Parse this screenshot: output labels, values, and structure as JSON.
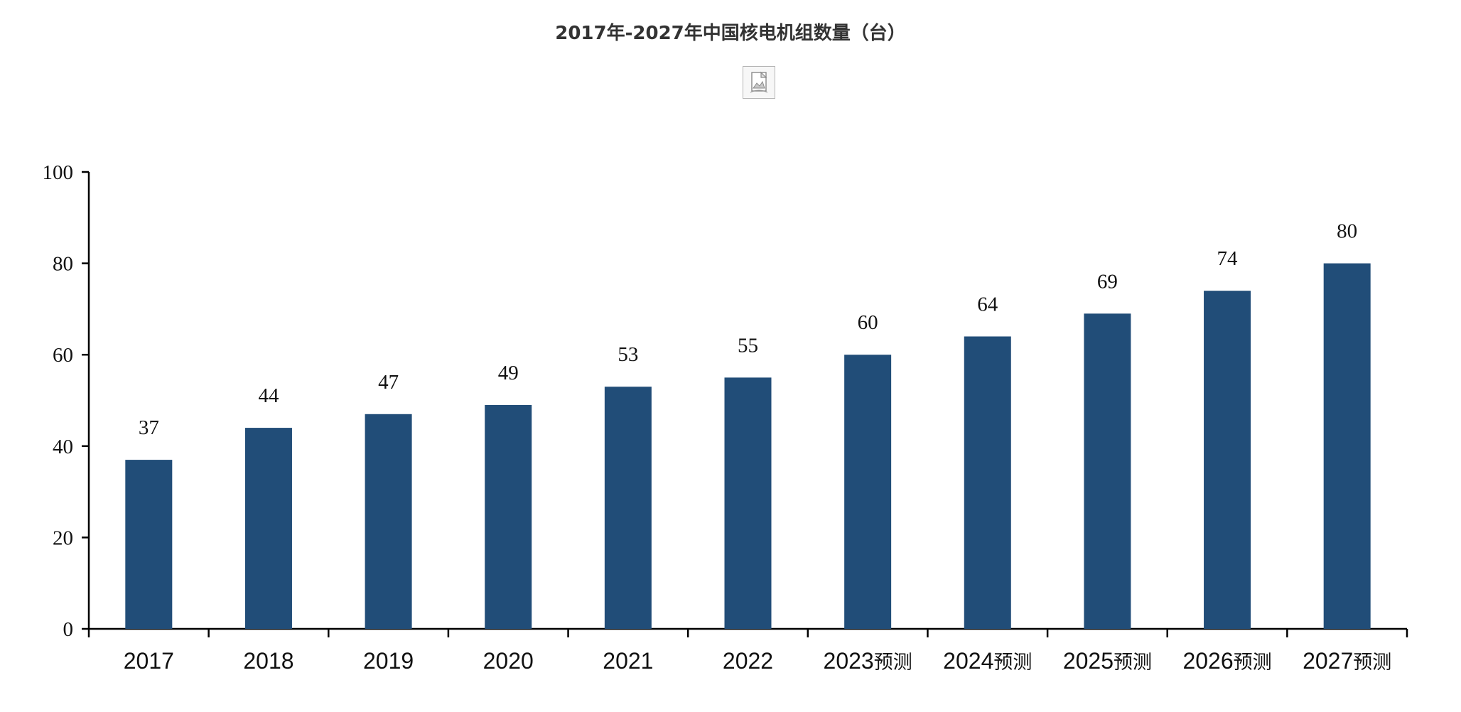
{
  "chart_data": {
    "type": "bar",
    "title": "2017年-2027年中国核电机组数量（台）",
    "categories": [
      "2017",
      "2018",
      "2019",
      "2020",
      "2021",
      "2022",
      "2023预测",
      "2024预测",
      "2025预测",
      "2026预测",
      "2027预测"
    ],
    "values": [
      37,
      44,
      47,
      49,
      53,
      55,
      60,
      64,
      69,
      74,
      80
    ],
    "xlabel": "",
    "ylabel": "",
    "ylim": [
      0,
      100
    ],
    "yticks": [
      0,
      20,
      40,
      60,
      80,
      100
    ],
    "grid": false,
    "bar_color": "#214d78"
  },
  "icons": {
    "broken_image": "image-icon"
  }
}
